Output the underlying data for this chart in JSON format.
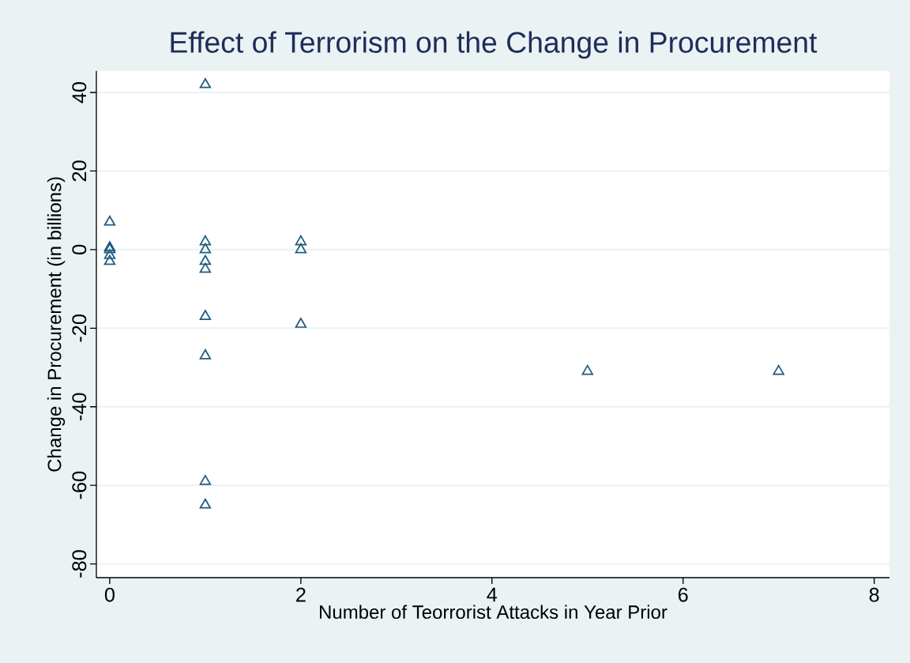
{
  "chart_data": {
    "type": "scatter",
    "title": "Effect of Terrorism on the Change in Procurement",
    "xlabel": "Number of Teorrorist Attacks in Year Prior",
    "ylabel": "Change in Procurement (in billions)",
    "x": [
      0,
      0,
      0,
      0,
      0,
      1,
      1,
      1,
      1,
      1,
      1,
      1,
      1,
      1,
      2,
      2,
      2,
      5,
      7
    ],
    "values": [
      7,
      0.5,
      0,
      -1.5,
      -3,
      42,
      2,
      0,
      -3,
      -5,
      -17,
      -27,
      -59,
      -65,
      2,
      0,
      -19,
      -31,
      -31
    ],
    "color": "#1f5a80",
    "marker": "triangle",
    "grid": "y",
    "xlim": [
      -0.14,
      8.16
    ],
    "ylim": [
      -83.5,
      45.5
    ],
    "xticks": [
      0,
      2,
      4,
      6,
      8
    ],
    "yticks": [
      -80,
      -60,
      -40,
      -20,
      0,
      20,
      40
    ]
  }
}
